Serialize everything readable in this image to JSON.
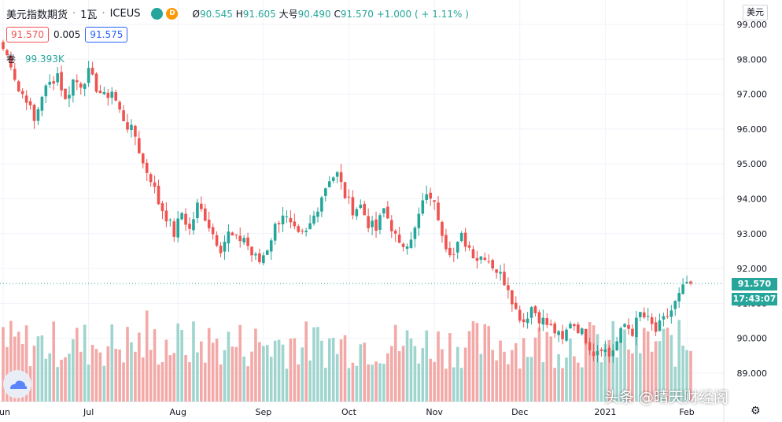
{
  "header": {
    "symbol_name": "美元指数期货",
    "interval": "1瓦",
    "exchange": "ICEUS",
    "badge_d": "D",
    "open_label": "Ø",
    "open": "90.545",
    "high_label": "H",
    "high": "91.605",
    "low_label": "大号",
    "low": "90.490",
    "close_label": "C",
    "close": "91.570",
    "change": "+1.000",
    "change_pct": "( + 1.11% )",
    "sell_price": "91.570",
    "spread": "0.005",
    "buy_price": "91.575",
    "volume_label": "卷",
    "volume_value": "99.393K",
    "currency_button": "美元"
  },
  "price_axis": {
    "ticks": [
      "99.000",
      "98.000",
      "97.000",
      "96.000",
      "95.000",
      "94.000",
      "93.000",
      "92.000",
      "91.000",
      "90.000",
      "89.000"
    ],
    "last_price_label": "91.570",
    "countdown_label": "17:43:07"
  },
  "watermark": "头条 @晴天财经阁",
  "colors": {
    "up": "#26a69a",
    "down": "#ef5350",
    "vol_up": "#9fd5ce",
    "vol_down": "#f2a9a7",
    "grid": "#f0f3fa",
    "axis_text": "#131722"
  },
  "chart_data": {
    "type": "candlestick",
    "title": "美元指数期货 · 1瓦 · ICEUS",
    "ylim": [
      88.6,
      99.5
    ],
    "yticks": [
      99,
      98,
      97,
      96,
      95,
      94,
      93,
      92,
      91,
      90,
      89
    ],
    "last_price": 91.57,
    "x_labels": [
      {
        "label": "un",
        "index": 0
      },
      {
        "label": "Jul",
        "index": 22
      },
      {
        "label": "Aug",
        "index": 45
      },
      {
        "label": "Sep",
        "index": 67
      },
      {
        "label": "Oct",
        "index": 89
      },
      {
        "label": "Nov",
        "index": 111
      },
      {
        "label": "Dec",
        "index": 133
      },
      {
        "label": "2021",
        "index": 155
      },
      {
        "label": "Feb",
        "index": 176
      }
    ],
    "close_anchors": [
      [
        0,
        98.3
      ],
      [
        2,
        97.9
      ],
      [
        4,
        97.1
      ],
      [
        6,
        96.9
      ],
      [
        8,
        96.2
      ],
      [
        10,
        97.0
      ],
      [
        12,
        97.3
      ],
      [
        14,
        97.6
      ],
      [
        16,
        96.8
      ],
      [
        18,
        97.4
      ],
      [
        20,
        97.3
      ],
      [
        22,
        97.6
      ],
      [
        24,
        97.2
      ],
      [
        26,
        96.9
      ],
      [
        28,
        97.1
      ],
      [
        30,
        96.5
      ],
      [
        32,
        96.1
      ],
      [
        34,
        95.8
      ],
      [
        36,
        95.0
      ],
      [
        38,
        94.6
      ],
      [
        40,
        93.9
      ],
      [
        42,
        93.5
      ],
      [
        44,
        93.0
      ],
      [
        46,
        93.6
      ],
      [
        48,
        93.1
      ],
      [
        50,
        93.8
      ],
      [
        52,
        93.5
      ],
      [
        54,
        93.0
      ],
      [
        56,
        92.6
      ],
      [
        58,
        93.0
      ],
      [
        60,
        92.8
      ],
      [
        62,
        92.9
      ],
      [
        64,
        92.4
      ],
      [
        66,
        92.2
      ],
      [
        68,
        92.6
      ],
      [
        70,
        93.2
      ],
      [
        72,
        93.6
      ],
      [
        74,
        93.2
      ],
      [
        76,
        92.9
      ],
      [
        78,
        93.0
      ],
      [
        80,
        93.5
      ],
      [
        82,
        94.1
      ],
      [
        84,
        94.6
      ],
      [
        86,
        94.7
      ],
      [
        88,
        94.1
      ],
      [
        90,
        93.7
      ],
      [
        92,
        93.8
      ],
      [
        94,
        93.3
      ],
      [
        96,
        93.1
      ],
      [
        98,
        93.7
      ],
      [
        100,
        93.2
      ],
      [
        102,
        92.6
      ],
      [
        104,
        92.8
      ],
      [
        106,
        93.1
      ],
      [
        108,
        93.9
      ],
      [
        110,
        94.1
      ],
      [
        112,
        93.5
      ],
      [
        114,
        92.7
      ],
      [
        116,
        92.4
      ],
      [
        118,
        92.9
      ],
      [
        120,
        92.6
      ],
      [
        122,
        92.3
      ],
      [
        124,
        92.4
      ],
      [
        126,
        92.1
      ],
      [
        128,
        91.8
      ],
      [
        130,
        91.5
      ],
      [
        132,
        90.8
      ],
      [
        134,
        90.5
      ],
      [
        136,
        90.9
      ],
      [
        138,
        90.6
      ],
      [
        140,
        90.4
      ],
      [
        142,
        90.2
      ],
      [
        144,
        89.9
      ],
      [
        146,
        90.5
      ],
      [
        148,
        90.3
      ],
      [
        150,
        90.0
      ],
      [
        152,
        89.6
      ],
      [
        154,
        89.8
      ],
      [
        156,
        89.5
      ],
      [
        158,
        89.9
      ],
      [
        160,
        90.4
      ],
      [
        162,
        90.2
      ],
      [
        164,
        90.7
      ],
      [
        166,
        90.5
      ],
      [
        168,
        90.2
      ],
      [
        170,
        90.5
      ],
      [
        172,
        90.8
      ],
      [
        174,
        91.2
      ],
      [
        176,
        91.6
      ],
      [
        177,
        91.57
      ]
    ],
    "volume_range": [
      60000,
      180000
    ]
  }
}
